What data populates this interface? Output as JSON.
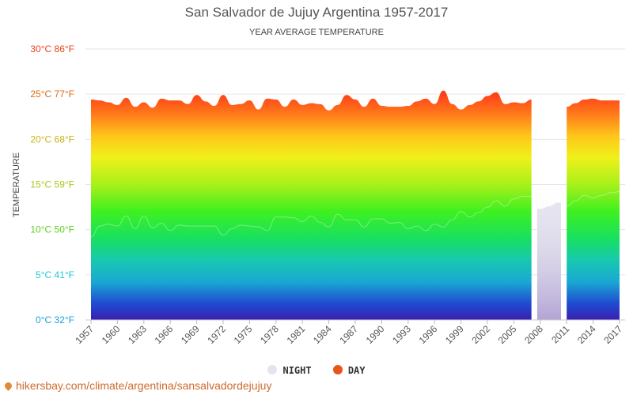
{
  "chart_data": {
    "type": "area",
    "title": "San Salvador de Jujuy Argentina 1957-2017",
    "subtitle": "YEAR AVERAGE TEMPERATURE",
    "ylabel": "TEMPERATURE",
    "ylim": [
      0,
      30
    ],
    "yticks": [
      {
        "value": 0,
        "label": "0°C 32°F",
        "color": "#1ba0d8"
      },
      {
        "value": 5,
        "label": "5°C 41°F",
        "color": "#1fc9d6"
      },
      {
        "value": 10,
        "label": "10°C 50°F",
        "color": "#5fcf1f"
      },
      {
        "value": 15,
        "label": "15°C 59°F",
        "color": "#a6c81a"
      },
      {
        "value": 20,
        "label": "20°C 68°F",
        "color": "#c9b419"
      },
      {
        "value": 25,
        "label": "25°C 77°F",
        "color": "#e06b10"
      },
      {
        "value": 30,
        "label": "30°C 86°F",
        "color": "#e8431c"
      }
    ],
    "xlim": [
      1957,
      2017
    ],
    "xticks": [
      "1957",
      "1960",
      "1963",
      "1966",
      "1969",
      "1972",
      "1975",
      "1978",
      "1981",
      "1984",
      "1987",
      "1990",
      "1993",
      "1996",
      "1999",
      "2002",
      "2005",
      "2008",
      "2011",
      "2014",
      "2017"
    ],
    "grid": true,
    "legend_position": "bottom-center",
    "series": [
      {
        "name": "NIGHT",
        "color": "#e4e4ee",
        "x": [
          1957,
          1958,
          1959,
          1960,
          1961,
          1962,
          1963,
          1964,
          1965,
          1966,
          1967,
          1968,
          1969,
          1970,
          1971,
          1972,
          1973,
          1974,
          1975,
          1976,
          1977,
          1978,
          1979,
          1980,
          1981,
          1982,
          1983,
          1984,
          1985,
          1986,
          1987,
          1988,
          1989,
          1990,
          1991,
          1992,
          1993,
          1994,
          1995,
          1996,
          1997,
          1998,
          1999,
          2000,
          2001,
          2002,
          2003,
          2004,
          2005,
          2006,
          2007,
          2008,
          2009,
          2010,
          2011,
          2012,
          2013,
          2014,
          2015,
          2016,
          2017
        ],
        "values": [
          9.2,
          10.4,
          10.6,
          10.4,
          11.5,
          10.1,
          11.5,
          10.2,
          10.7,
          9.9,
          10.5,
          10.4,
          10.4,
          10.4,
          10.4,
          9.4,
          10.1,
          10.5,
          10.4,
          10.3,
          9.9,
          11.4,
          11.4,
          11.3,
          10.9,
          11.5,
          10.8,
          10.3,
          11.7,
          11.1,
          11.1,
          10.3,
          11.2,
          11.2,
          10.7,
          10.8,
          10.1,
          10.4,
          9.9,
          10.6,
          10.3,
          11.1,
          12.0,
          11.4,
          11.9,
          12.5,
          13.2,
          12.6,
          13.4,
          13.7,
          13.7,
          12.3,
          12.6,
          13.0,
          12.6,
          13.2,
          13.8,
          13.5,
          13.8,
          14.1,
          14.2
        ]
      },
      {
        "name": "DAY",
        "color": "#e8541c",
        "x": [
          1957,
          1958,
          1959,
          1960,
          1961,
          1962,
          1963,
          1964,
          1965,
          1966,
          1967,
          1968,
          1969,
          1970,
          1971,
          1972,
          1973,
          1974,
          1975,
          1976,
          1977,
          1978,
          1979,
          1980,
          1981,
          1982,
          1983,
          1984,
          1985,
          1986,
          1987,
          1988,
          1989,
          1990,
          1991,
          1992,
          1993,
          1994,
          1995,
          1996,
          1997,
          1998,
          1999,
          2000,
          2001,
          2002,
          2003,
          2004,
          2005,
          2006,
          2007,
          2011,
          2012,
          2013,
          2014,
          2015,
          2016,
          2017
        ],
        "values": [
          24.4,
          24.3,
          24.1,
          23.8,
          24.6,
          23.6,
          24.1,
          23.5,
          24.5,
          24.3,
          24.3,
          23.9,
          24.9,
          24.2,
          23.7,
          24.9,
          23.8,
          23.9,
          24.3,
          23.3,
          24.5,
          24.4,
          23.6,
          24.4,
          23.8,
          24.0,
          23.9,
          23.2,
          23.8,
          24.9,
          24.4,
          23.6,
          24.5,
          23.7,
          23.6,
          23.6,
          23.7,
          24.2,
          24.5,
          23.9,
          25.4,
          23.9,
          23.3,
          23.8,
          24.2,
          24.8,
          25.2,
          23.9,
          24.1,
          24.0,
          24.4,
          23.6,
          24.0,
          24.4,
          24.5,
          24.3,
          24.3,
          24.3
        ]
      }
    ]
  },
  "legend": [
    {
      "label": "NIGHT",
      "color": "#e4e4ee"
    },
    {
      "label": "DAY",
      "color": "#e8541c"
    }
  ],
  "footer": {
    "url": "hikersbay.com/climate/argentina/sansalvadordejujuy"
  }
}
